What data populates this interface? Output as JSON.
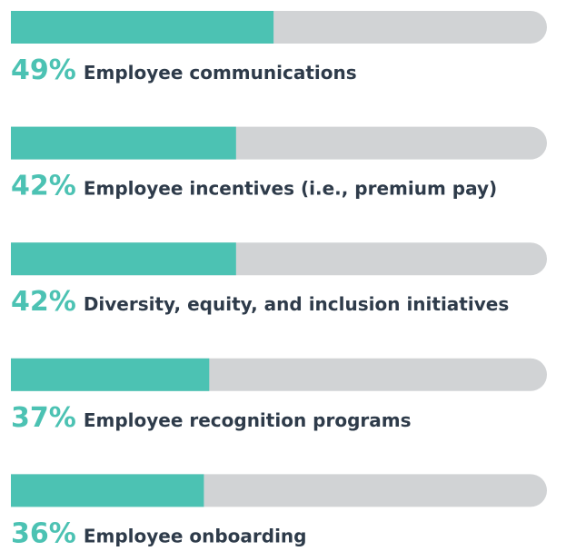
{
  "chart_data": {
    "type": "progress",
    "categories": [
      "Employee communications",
      "Employee incentives (i.e., premium pay)",
      "Diversity, equity, and inclusion initiatives",
      "Employee recognition programs",
      "Employee onboarding"
    ],
    "values": [
      49,
      42,
      42,
      37,
      36
    ],
    "value_labels": [
      "49%",
      "42%",
      "42%",
      "37%",
      "36%"
    ],
    "color": "#4cc2b3",
    "track_color": "#d1d3d5",
    "label_color": "#2e3b4a",
    "xlim": [
      0,
      100
    ]
  }
}
